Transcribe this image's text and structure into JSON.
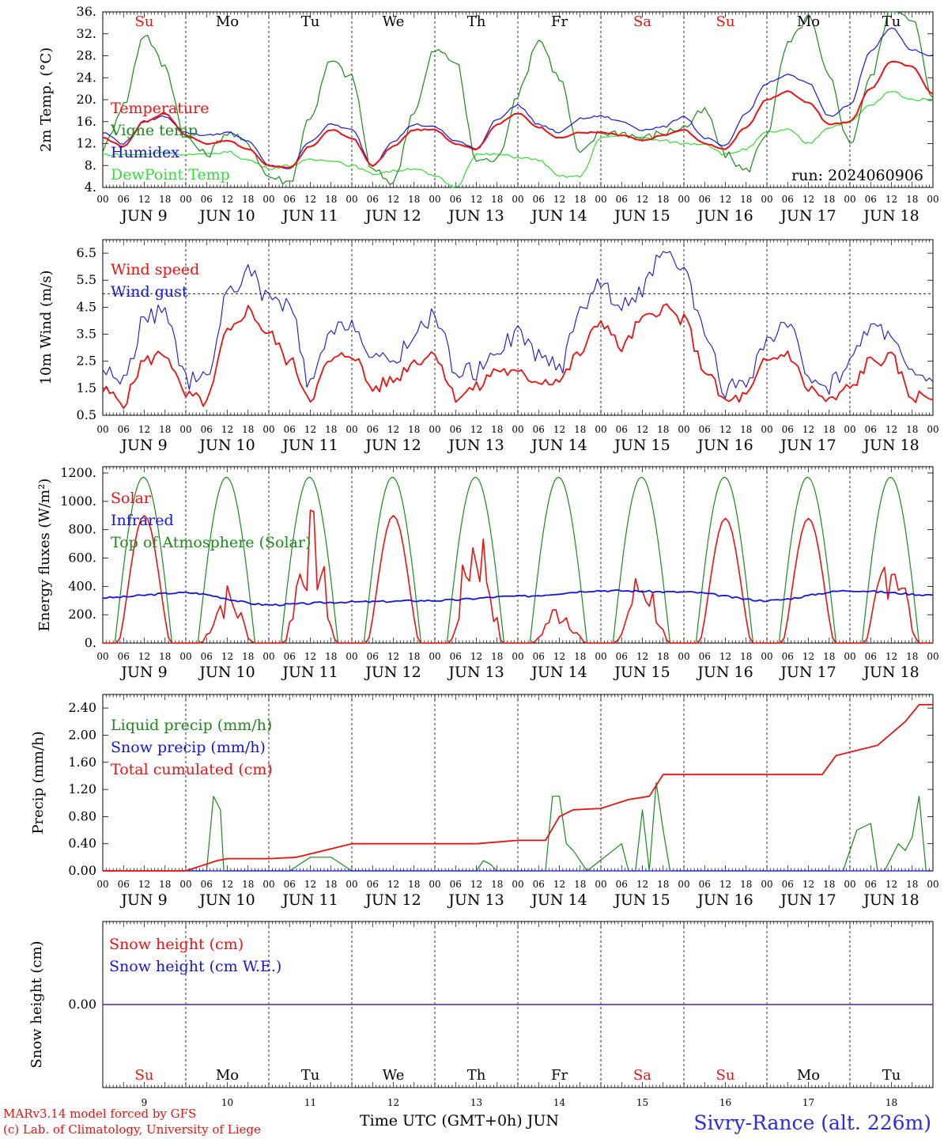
{
  "days": {
    "top": [
      "Su",
      "Mo",
      "Tu",
      "We",
      "Th",
      "Fr",
      "Sa",
      "Su",
      "Mo",
      "Tu"
    ],
    "weekend_index": [
      0,
      6,
      7
    ],
    "date_labels": [
      "JUN  9",
      "JUN 10",
      "JUN 11",
      "JUN 12",
      "JUN 13",
      "JUN 14",
      "JUN 15",
      "JUN 16",
      "JUN 17",
      "JUN 18"
    ],
    "bottom_numbers": [
      "9",
      "10",
      "11",
      "12",
      "13",
      "14",
      "15",
      "16",
      "17",
      "18"
    ],
    "hour_ticks": [
      "00",
      "06",
      "12",
      "18"
    ],
    "end_tick": "00"
  },
  "colors": {
    "red": "#ee1111",
    "green": "#1a8a1a",
    "blue": "#1515dd",
    "lightgreen": "#33dd33",
    "purple": "#7a3ab0"
  },
  "chart_data": [
    {
      "type": "line",
      "ylabel": "2m Temp. (°C)",
      "yticks": [
        "4.",
        "8.",
        "12.",
        "16.",
        "20.",
        "24.",
        "28.",
        "32.",
        "36."
      ],
      "ylim": [
        4,
        36
      ],
      "annotation": "run: 2024060906",
      "legend": [
        "Temperature",
        "Vigne temp",
        "Humidex",
        "DewPoint Temp"
      ],
      "x_hours": [
        0,
        6,
        12,
        18,
        24,
        30,
        36,
        42,
        48,
        54,
        60,
        66,
        72,
        78,
        84,
        90,
        96,
        102,
        108,
        114,
        120,
        126,
        132,
        138,
        144,
        150,
        156,
        162,
        168,
        174,
        180,
        186,
        192,
        198,
        204,
        210,
        216,
        222,
        228,
        234,
        240
      ],
      "series": [
        {
          "name": "Temperature",
          "color": "red",
          "values": [
            13,
            11.5,
            16,
            17.5,
            13.5,
            12,
            12.5,
            11,
            8,
            7.5,
            11.5,
            14.5,
            13,
            8,
            11.5,
            14.5,
            14.5,
            12,
            11,
            15.5,
            17.5,
            15,
            13,
            14,
            14,
            13.5,
            12.5,
            13.5,
            14.5,
            12,
            11,
            15,
            20,
            21.5,
            19.5,
            15.5,
            16,
            22,
            27,
            26,
            21
          ]
        },
        {
          "name": "Vigne temp",
          "color": "green",
          "values": [
            11,
            19,
            32,
            26,
            13,
            10,
            14,
            12,
            6,
            5,
            17,
            27,
            24,
            7,
            5,
            18,
            29,
            27,
            9,
            9,
            21,
            31,
            24,
            10,
            14,
            14,
            13,
            14,
            15,
            18,
            10,
            7,
            14,
            30,
            35,
            24,
            12,
            24,
            37,
            35,
            20
          ]
        },
        {
          "name": "Humidex",
          "color": "blue",
          "values": [
            14,
            12,
            16,
            17,
            14,
            13.5,
            14,
            12.5,
            8,
            7.5,
            12.5,
            15.5,
            14.5,
            8,
            12.5,
            15.5,
            15,
            12.5,
            11,
            16.5,
            19,
            15.5,
            14,
            16.5,
            17,
            16,
            14.5,
            15,
            17,
            13,
            11.5,
            17.5,
            23,
            24.5,
            23,
            17,
            19,
            29,
            33,
            29,
            28
          ]
        },
        {
          "name": "DewPoint Temp",
          "color": "lightgreen",
          "values": [
            10,
            10,
            10,
            10.5,
            10,
            10,
            10.5,
            9,
            7.5,
            8,
            9,
            9,
            8,
            6.5,
            7,
            7.5,
            6,
            4,
            10,
            10,
            9.5,
            9,
            6,
            6,
            13,
            13.5,
            13,
            12.5,
            12,
            12,
            10,
            11,
            14,
            14.5,
            12,
            15,
            16,
            19,
            21.5,
            20,
            20
          ]
        }
      ]
    },
    {
      "type": "line",
      "ylabel": "10m Wind (m/s)",
      "yticks": [
        "0.5",
        "1.5",
        "2.5",
        "3.5",
        "4.5",
        "5.5",
        "6.5"
      ],
      "ylim": [
        0.5,
        7.0
      ],
      "reference_line": 5,
      "legend": [
        "Wind speed",
        "Wind gust"
      ],
      "x_hours": [
        0,
        6,
        12,
        18,
        24,
        30,
        36,
        42,
        48,
        54,
        60,
        66,
        72,
        78,
        84,
        90,
        96,
        102,
        108,
        114,
        120,
        126,
        132,
        138,
        144,
        150,
        156,
        162,
        168,
        174,
        180,
        186,
        192,
        198,
        204,
        210,
        216,
        222,
        228,
        234,
        240
      ],
      "series": [
        {
          "name": "Wind speed",
          "color": "red",
          "values": [
            1.4,
            1,
            2.5,
            2.8,
            1.2,
            1,
            3.5,
            4.4,
            3.5,
            2.5,
            1.2,
            2.5,
            2.8,
            1.5,
            1.8,
            2.5,
            2.8,
            1.2,
            1.5,
            2.2,
            2,
            1.8,
            1.8,
            2.8,
            4,
            3,
            4,
            4.5,
            4,
            2.2,
            1,
            1.2,
            2.5,
            2.8,
            1.5,
            1,
            1.5,
            2.5,
            2.6,
            1.2,
            1.2
          ]
        },
        {
          "name": "Wind gust",
          "color": "blue",
          "values": [
            2.2,
            1.8,
            4,
            4.4,
            1.8,
            1.8,
            5,
            5.8,
            4.8,
            4.5,
            1.6,
            3.5,
            4,
            2.5,
            2.5,
            3.5,
            4.2,
            2.2,
            2.1,
            3,
            3.5,
            2.8,
            2.2,
            4.5,
            5.4,
            4.5,
            5.2,
            6.4,
            5.8,
            3.5,
            1.4,
            1.8,
            3.2,
            3.8,
            2,
            1.6,
            2.5,
            3.8,
            3.6,
            2,
            1.6
          ]
        }
      ]
    },
    {
      "type": "line",
      "ylabel": "Energy fluxes (W/m²)",
      "yticks": [
        "0.",
        "200.",
        "400.",
        "600.",
        "800.",
        "1000.",
        "1200."
      ],
      "ylim": [
        0,
        1200
      ],
      "legend": [
        "Solar",
        "Infrared",
        "Top of Atmosphere (Solar)"
      ],
      "solar_peaks": [
        900,
        350,
        780,
        900,
        780,
        250,
        460,
        880,
        880,
        680
      ],
      "toa_peak": 1170,
      "infrared": {
        "x_hours": [
          0,
          24,
          48,
          72,
          96,
          120,
          144,
          168,
          192,
          216,
          240
        ],
        "values": [
          320,
          355,
          270,
          290,
          300,
          330,
          370,
          360,
          300,
          370,
          340
        ]
      },
      "series": [
        {
          "name": "Solar",
          "color": "red"
        },
        {
          "name": "Infrared",
          "color": "blue"
        },
        {
          "name": "Top of Atmosphere (Solar)",
          "color": "green"
        }
      ]
    },
    {
      "type": "line",
      "ylabel": "Precip (mm/h)",
      "yticks": [
        "0.00",
        "0.40",
        "0.80",
        "1.20",
        "1.60",
        "2.00",
        "2.40"
      ],
      "ylim": [
        0,
        2.6
      ],
      "legend": [
        "Liquid precip (mm/h)",
        "Snow precip (mm/h)",
        "Total cumulated (cm)"
      ],
      "series": [
        {
          "name": "Liquid precip (mm/h)",
          "color": "green",
          "x_hours": [
            0,
            30,
            32,
            34,
            35,
            36,
            38,
            54,
            60,
            66,
            72,
            84,
            108,
            110,
            112,
            114,
            128,
            130,
            132,
            134,
            136,
            140,
            150,
            152,
            154,
            156,
            158,
            160,
            162,
            164,
            166,
            168,
            214,
            218,
            222,
            224,
            226,
            230,
            232,
            234,
            236,
            238,
            240
          ],
          "values": [
            0,
            0,
            1.1,
            0.9,
            0,
            0,
            0,
            0,
            0.2,
            0.2,
            0,
            0,
            0,
            0.15,
            0.1,
            0,
            0,
            1.1,
            1.1,
            0.4,
            0.3,
            0,
            0.4,
            0,
            0,
            0.9,
            0,
            1.3,
            0.6,
            0,
            0,
            0,
            0,
            0.6,
            0.7,
            0,
            0,
            0.4,
            0.3,
            0.5,
            1.1,
            0,
            0
          ]
        },
        {
          "name": "Snow precip (mm/h)",
          "color": "blue",
          "x_hours": [
            0,
            240
          ],
          "values": [
            0,
            0
          ]
        },
        {
          "name": "Total cumulated (cm)",
          "color": "red",
          "x_hours": [
            0,
            24,
            33,
            36,
            48,
            56,
            72,
            84,
            108,
            120,
            128,
            132,
            136,
            144,
            152,
            158,
            162,
            192,
            208,
            212,
            216,
            224,
            232,
            236,
            240
          ],
          "values": [
            0,
            0,
            0.15,
            0.18,
            0.18,
            0.2,
            0.4,
            0.4,
            0.4,
            0.45,
            0.45,
            0.8,
            0.9,
            0.92,
            1.05,
            1.1,
            1.42,
            1.42,
            1.42,
            1.7,
            1.75,
            1.85,
            2.2,
            2.45,
            2.45
          ]
        }
      ]
    },
    {
      "type": "line",
      "ylabel": "Snow height (cm)",
      "yticks": [
        "0.00"
      ],
      "legend": [
        "Snow height (cm)",
        "Snow height (cm W.E.)"
      ],
      "series": [
        {
          "name": "Snow height (cm)",
          "color": "red",
          "x_hours": [
            0,
            240
          ],
          "values": [
            0,
            0
          ]
        },
        {
          "name": "Snow height (cm W.E.)",
          "color": "blue",
          "x_hours": [
            0,
            240
          ],
          "values": [
            0,
            0
          ]
        }
      ]
    }
  ],
  "footer": {
    "credit_line1": "MARv3.14 model forced by GFS",
    "credit_line2": "(c) Lab. of Climatology, University of Liege",
    "xlabel": "Time UTC (GMT+0h) JUN",
    "station": "Sivry-Rance (alt. 226m)"
  }
}
